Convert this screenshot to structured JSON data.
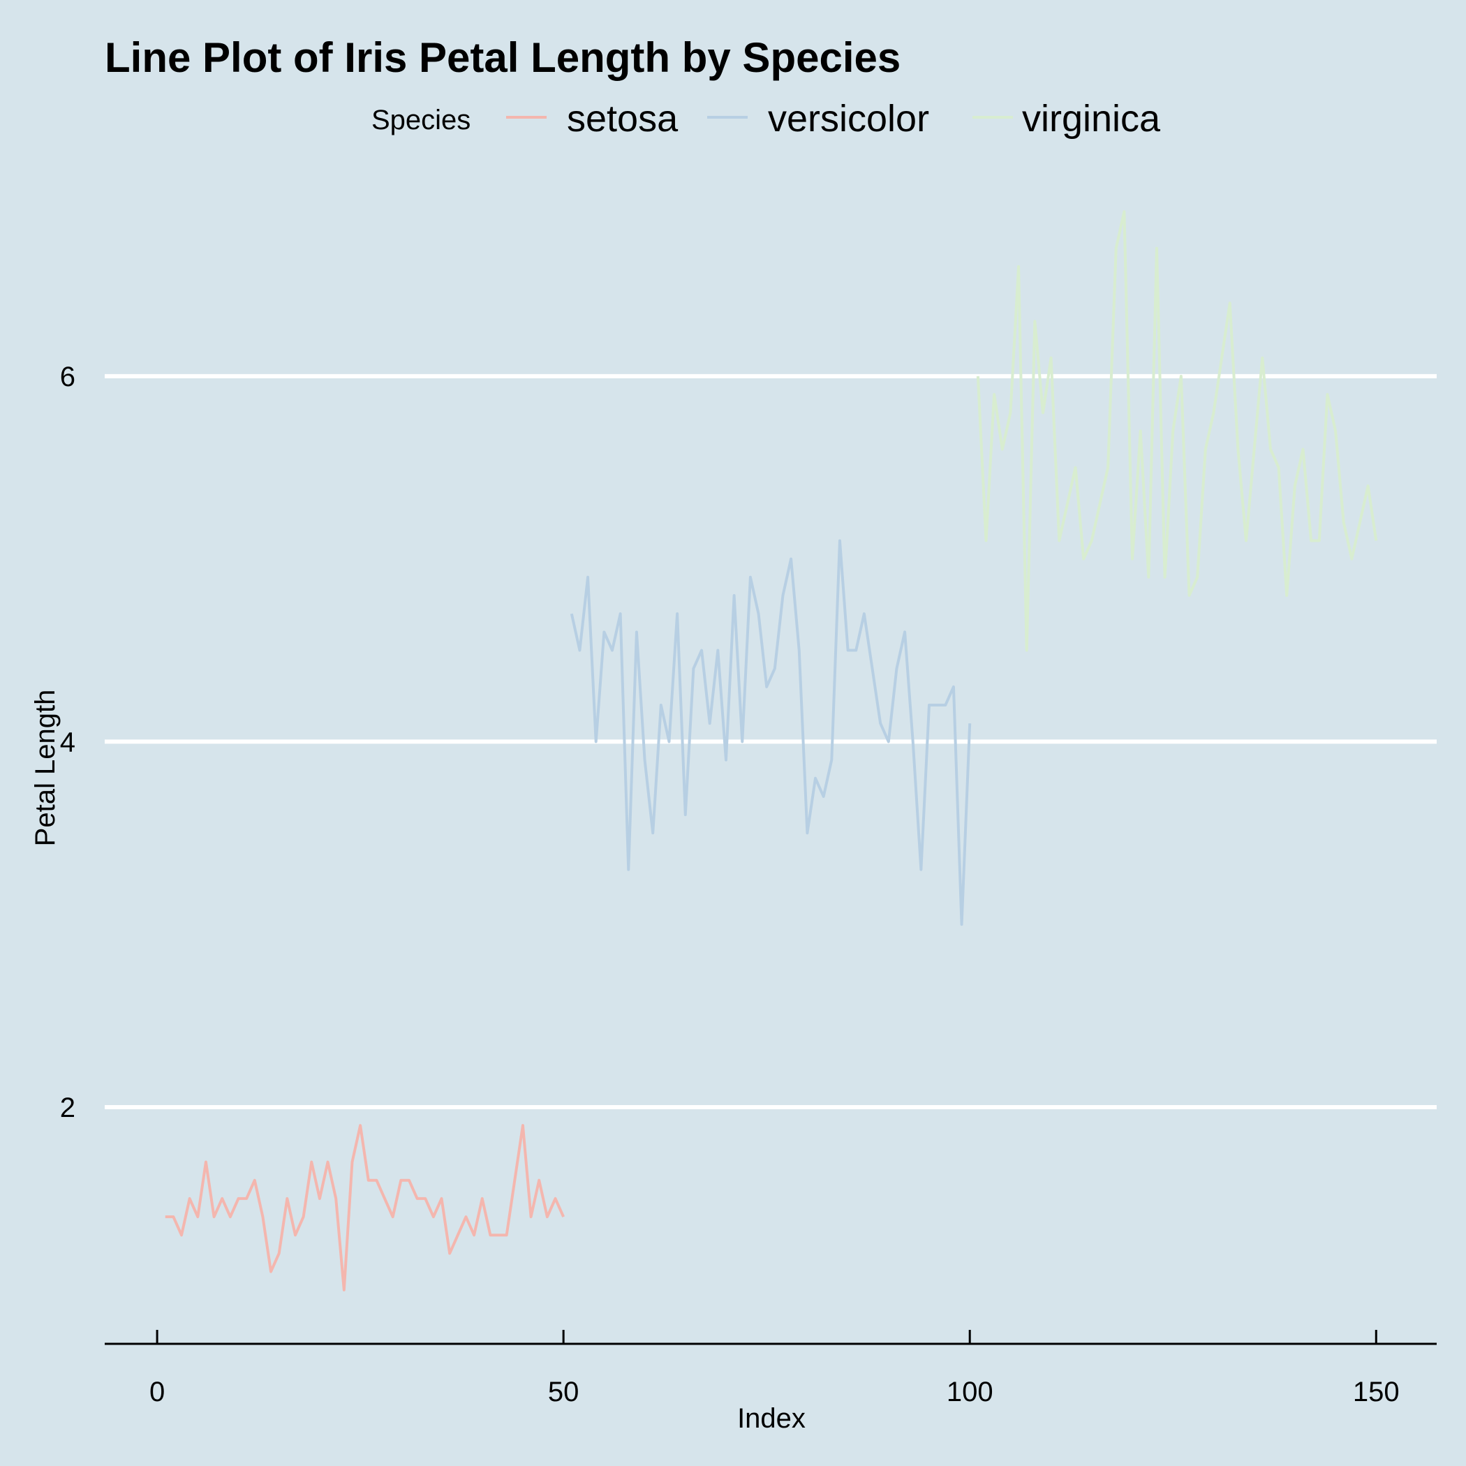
{
  "chart_data": {
    "type": "line",
    "title": "Line Plot of Iris Petal Length by Species",
    "xlabel": "Index",
    "ylabel": "Petal Length",
    "xlim": [
      -6.45,
      157.45
    ],
    "ylim": [
      0.705,
      7.195
    ],
    "x_ticks": [
      0,
      50,
      100,
      150
    ],
    "y_ticks": [
      2,
      4,
      6
    ],
    "grid": "horizontal major only",
    "background": "#d6e4eb",
    "legend": {
      "title": "Species",
      "position": "top"
    },
    "series": [
      {
        "name": "setosa",
        "color": "#f4b6ae",
        "x_start": 1,
        "values": [
          1.4,
          1.4,
          1.3,
          1.5,
          1.4,
          1.7,
          1.4,
          1.5,
          1.4,
          1.5,
          1.5,
          1.6,
          1.4,
          1.1,
          1.2,
          1.5,
          1.3,
          1.4,
          1.7,
          1.5,
          1.7,
          1.5,
          1.0,
          1.7,
          1.9,
          1.6,
          1.6,
          1.5,
          1.4,
          1.6,
          1.6,
          1.5,
          1.5,
          1.4,
          1.5,
          1.2,
          1.3,
          1.4,
          1.3,
          1.5,
          1.3,
          1.3,
          1.3,
          1.6,
          1.9,
          1.4,
          1.6,
          1.4,
          1.5,
          1.4
        ]
      },
      {
        "name": "versicolor",
        "color": "#b7cfe3",
        "x_start": 51,
        "values": [
          4.7,
          4.5,
          4.9,
          4.0,
          4.6,
          4.5,
          4.7,
          3.3,
          4.6,
          3.9,
          3.5,
          4.2,
          4.0,
          4.7,
          3.6,
          4.4,
          4.5,
          4.1,
          4.5,
          3.9,
          4.8,
          4.0,
          4.9,
          4.7,
          4.3,
          4.4,
          4.8,
          5.0,
          4.5,
          3.5,
          3.8,
          3.7,
          3.9,
          5.1,
          4.5,
          4.5,
          4.7,
          4.4,
          4.1,
          4.0,
          4.4,
          4.6,
          4.0,
          3.3,
          4.2,
          4.2,
          4.2,
          4.3,
          3.0,
          4.1
        ]
      },
      {
        "name": "virginica",
        "color": "#d8edd0",
        "x_start": 101,
        "values": [
          6.0,
          5.1,
          5.9,
          5.6,
          5.8,
          6.6,
          4.5,
          6.3,
          5.8,
          6.1,
          5.1,
          5.3,
          5.5,
          5.0,
          5.1,
          5.3,
          5.5,
          6.7,
          6.9,
          5.0,
          5.7,
          4.9,
          6.7,
          4.9,
          5.7,
          6.0,
          4.8,
          4.9,
          5.6,
          5.8,
          6.1,
          6.4,
          5.6,
          5.1,
          5.6,
          6.1,
          5.6,
          5.5,
          4.8,
          5.4,
          5.6,
          5.1,
          5.1,
          5.9,
          5.7,
          5.2,
          5.0,
          5.2,
          5.4,
          5.1
        ]
      }
    ]
  }
}
